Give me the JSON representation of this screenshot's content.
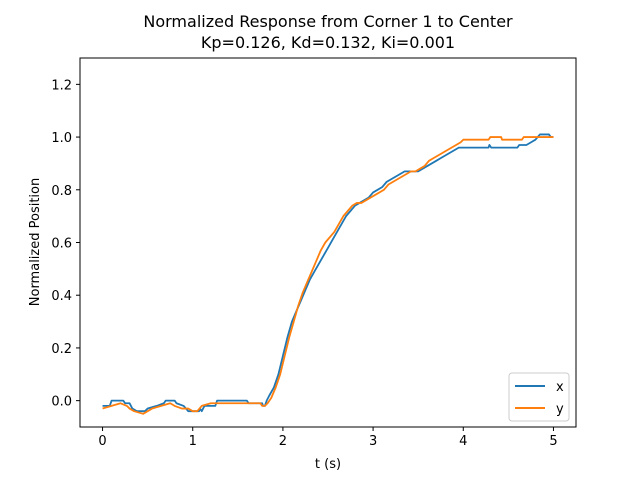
{
  "chart_data": {
    "type": "line",
    "title": "Normalized Response from Corner 1 to Center",
    "subtitle": "Kp=0.126, Kd=0.132, Ki=0.001",
    "xlabel": "t (s)",
    "ylabel": "Normalized Position",
    "xlim": [
      -0.25,
      5.25
    ],
    "ylim": [
      -0.1,
      1.3
    ],
    "xticks": [
      0,
      1,
      2,
      3,
      4,
      5
    ],
    "yticks": [
      0.0,
      0.2,
      0.4,
      0.6,
      0.8,
      1.0,
      1.2
    ],
    "xtick_labels": [
      "0",
      "1",
      "2",
      "3",
      "4",
      "5"
    ],
    "ytick_labels": [
      "0.0",
      "0.2",
      "0.4",
      "0.6",
      "0.8",
      "1.0",
      "1.2"
    ],
    "grid": false,
    "legend_position": "bottom-right",
    "series": [
      {
        "name": "x",
        "color": "#1f77b4",
        "points": [
          [
            0.0,
            -0.02
          ],
          [
            0.08,
            -0.02
          ],
          [
            0.1,
            0.0
          ],
          [
            0.23,
            0.0
          ],
          [
            0.25,
            -0.01
          ],
          [
            0.3,
            -0.01
          ],
          [
            0.33,
            -0.03
          ],
          [
            0.38,
            -0.04
          ],
          [
            0.47,
            -0.04
          ],
          [
            0.5,
            -0.03
          ],
          [
            0.6,
            -0.02
          ],
          [
            0.68,
            -0.01
          ],
          [
            0.7,
            0.0
          ],
          [
            0.8,
            0.0
          ],
          [
            0.82,
            -0.01
          ],
          [
            0.9,
            -0.02
          ],
          [
            0.95,
            -0.04
          ],
          [
            1.0,
            -0.04
          ],
          [
            1.07,
            -0.04
          ],
          [
            1.08,
            -0.03
          ],
          [
            1.1,
            -0.04
          ],
          [
            1.13,
            -0.02
          ],
          [
            1.25,
            -0.02
          ],
          [
            1.27,
            0.0
          ],
          [
            1.6,
            0.0
          ],
          [
            1.62,
            -0.01
          ],
          [
            1.77,
            -0.01
          ],
          [
            1.78,
            -0.02
          ],
          [
            1.8,
            -0.02
          ],
          [
            1.82,
            0.0
          ],
          [
            1.85,
            0.02
          ],
          [
            1.9,
            0.05
          ],
          [
            1.95,
            0.1
          ],
          [
            2.0,
            0.17
          ],
          [
            2.05,
            0.24
          ],
          [
            2.1,
            0.3
          ],
          [
            2.15,
            0.34
          ],
          [
            2.2,
            0.38
          ],
          [
            2.25,
            0.42
          ],
          [
            2.3,
            0.46
          ],
          [
            2.35,
            0.49
          ],
          [
            2.4,
            0.52
          ],
          [
            2.45,
            0.55
          ],
          [
            2.5,
            0.58
          ],
          [
            2.55,
            0.61
          ],
          [
            2.6,
            0.64
          ],
          [
            2.65,
            0.67
          ],
          [
            2.7,
            0.7
          ],
          [
            2.75,
            0.72
          ],
          [
            2.8,
            0.74
          ],
          [
            2.85,
            0.75
          ],
          [
            2.9,
            0.76
          ],
          [
            2.95,
            0.77
          ],
          [
            3.0,
            0.79
          ],
          [
            3.05,
            0.8
          ],
          [
            3.1,
            0.81
          ],
          [
            3.15,
            0.83
          ],
          [
            3.2,
            0.84
          ],
          [
            3.25,
            0.85
          ],
          [
            3.3,
            0.86
          ],
          [
            3.35,
            0.87
          ],
          [
            3.5,
            0.87
          ],
          [
            3.55,
            0.88
          ],
          [
            3.6,
            0.89
          ],
          [
            3.65,
            0.9
          ],
          [
            3.7,
            0.91
          ],
          [
            3.75,
            0.92
          ],
          [
            3.8,
            0.93
          ],
          [
            3.85,
            0.94
          ],
          [
            3.9,
            0.95
          ],
          [
            3.95,
            0.96
          ],
          [
            4.28,
            0.96
          ],
          [
            4.29,
            0.97
          ],
          [
            4.31,
            0.96
          ],
          [
            4.6,
            0.96
          ],
          [
            4.62,
            0.97
          ],
          [
            4.7,
            0.97
          ],
          [
            4.75,
            0.98
          ],
          [
            4.8,
            0.99
          ],
          [
            4.85,
            1.01
          ],
          [
            4.95,
            1.01
          ],
          [
            4.97,
            1.0
          ],
          [
            5.0,
            1.0
          ]
        ]
      },
      {
        "name": "y",
        "color": "#ff7f0e",
        "points": [
          [
            0.0,
            -0.03
          ],
          [
            0.1,
            -0.02
          ],
          [
            0.2,
            -0.01
          ],
          [
            0.27,
            -0.02
          ],
          [
            0.3,
            -0.03
          ],
          [
            0.35,
            -0.04
          ],
          [
            0.45,
            -0.05
          ],
          [
            0.5,
            -0.04
          ],
          [
            0.55,
            -0.03
          ],
          [
            0.65,
            -0.02
          ],
          [
            0.75,
            -0.01
          ],
          [
            0.8,
            -0.02
          ],
          [
            0.88,
            -0.03
          ],
          [
            0.95,
            -0.03
          ],
          [
            1.0,
            -0.04
          ],
          [
            1.05,
            -0.04
          ],
          [
            1.1,
            -0.02
          ],
          [
            1.2,
            -0.01
          ],
          [
            1.75,
            -0.01
          ],
          [
            1.77,
            -0.02
          ],
          [
            1.8,
            -0.02
          ],
          [
            1.83,
            -0.01
          ],
          [
            1.87,
            0.01
          ],
          [
            1.92,
            0.05
          ],
          [
            1.97,
            0.1
          ],
          [
            2.02,
            0.17
          ],
          [
            2.07,
            0.24
          ],
          [
            2.12,
            0.3
          ],
          [
            2.17,
            0.36
          ],
          [
            2.22,
            0.41
          ],
          [
            2.27,
            0.45
          ],
          [
            2.32,
            0.49
          ],
          [
            2.37,
            0.53
          ],
          [
            2.42,
            0.57
          ],
          [
            2.47,
            0.6
          ],
          [
            2.52,
            0.62
          ],
          [
            2.57,
            0.64
          ],
          [
            2.62,
            0.67
          ],
          [
            2.67,
            0.7
          ],
          [
            2.72,
            0.72
          ],
          [
            2.77,
            0.74
          ],
          [
            2.82,
            0.75
          ],
          [
            2.87,
            0.75
          ],
          [
            2.92,
            0.76
          ],
          [
            2.97,
            0.77
          ],
          [
            3.02,
            0.78
          ],
          [
            3.07,
            0.79
          ],
          [
            3.12,
            0.8
          ],
          [
            3.17,
            0.82
          ],
          [
            3.22,
            0.83
          ],
          [
            3.27,
            0.84
          ],
          [
            3.32,
            0.85
          ],
          [
            3.37,
            0.86
          ],
          [
            3.42,
            0.87
          ],
          [
            3.47,
            0.87
          ],
          [
            3.52,
            0.88
          ],
          [
            3.57,
            0.89
          ],
          [
            3.62,
            0.91
          ],
          [
            3.67,
            0.92
          ],
          [
            3.72,
            0.93
          ],
          [
            3.77,
            0.94
          ],
          [
            3.82,
            0.95
          ],
          [
            3.87,
            0.96
          ],
          [
            3.92,
            0.97
          ],
          [
            3.97,
            0.98
          ],
          [
            4.0,
            0.99
          ],
          [
            4.28,
            0.99
          ],
          [
            4.3,
            1.0
          ],
          [
            4.42,
            1.0
          ],
          [
            4.43,
            0.99
          ],
          [
            4.65,
            0.99
          ],
          [
            4.67,
            1.0
          ],
          [
            5.0,
            1.0
          ]
        ]
      }
    ]
  }
}
